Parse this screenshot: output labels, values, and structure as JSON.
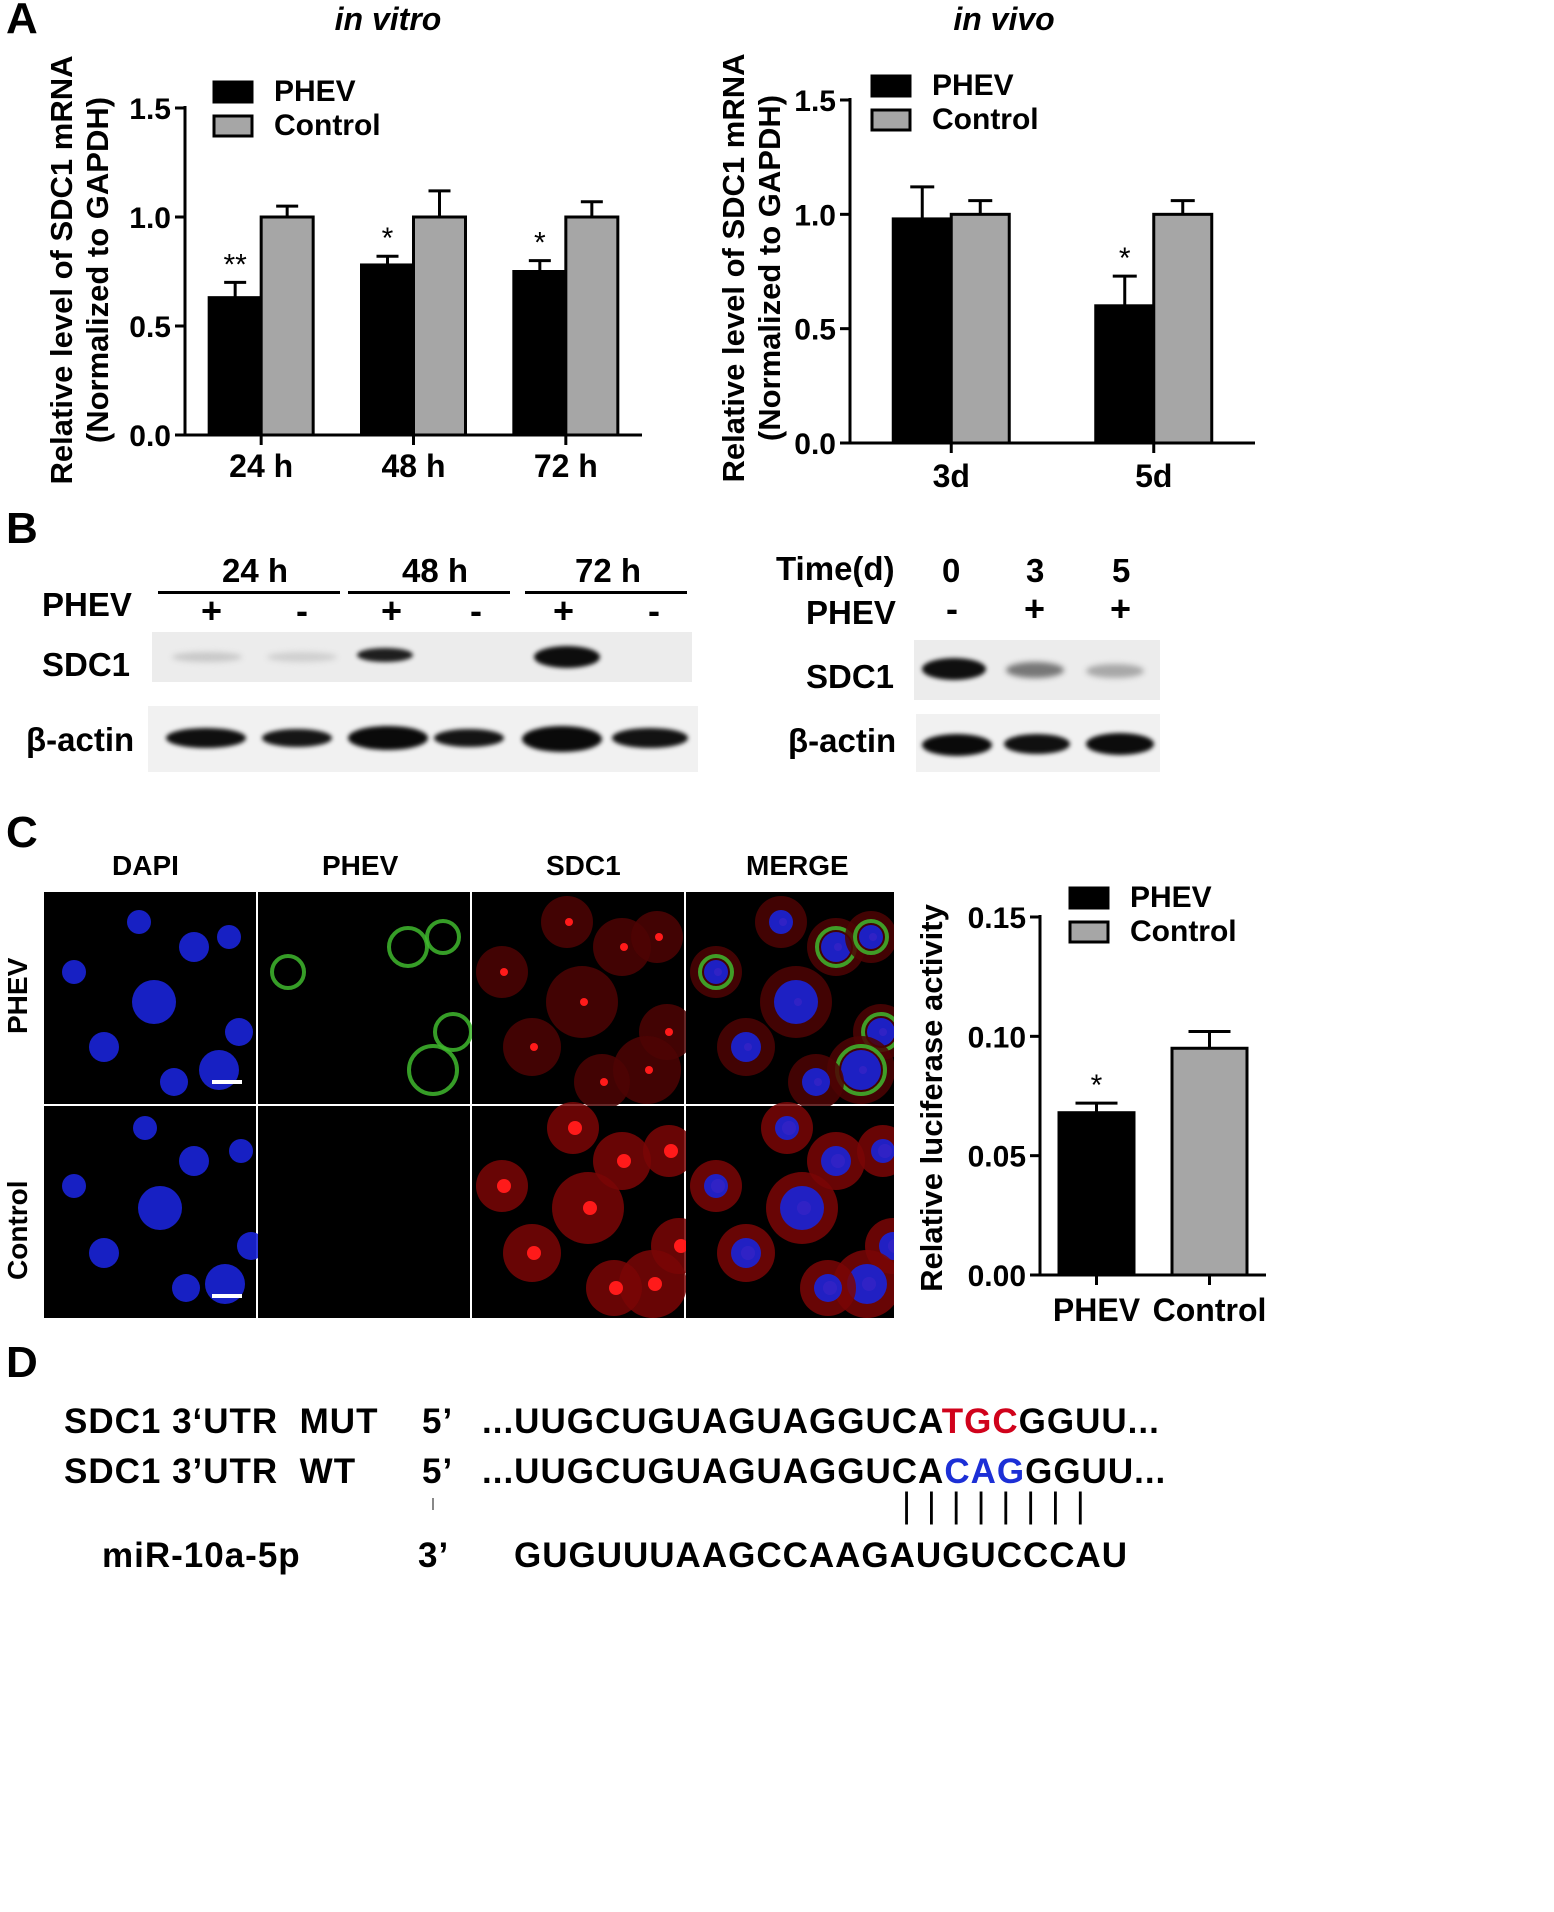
{
  "panels": {
    "A": "A",
    "B": "B",
    "C": "C",
    "D": "D"
  },
  "chart_data": [
    {
      "type": "bar",
      "title": "in vitro",
      "ylabel_line1": "Relative level of SDC1 mRNA",
      "ylabel_line2": "(Normalized to GAPDH)",
      "xlabel": "",
      "categories": [
        "24 h",
        "48 h",
        "72 h"
      ],
      "series": [
        {
          "name": "PHEV",
          "values": [
            0.63,
            0.78,
            0.75
          ],
          "errors": [
            0.07,
            0.04,
            0.05
          ],
          "color": "#000000"
        },
        {
          "name": "Control",
          "values": [
            1.0,
            1.0,
            1.0
          ],
          "errors": [
            0.05,
            0.12,
            0.07
          ],
          "color": "#a6a6a6"
        }
      ],
      "significance": [
        "**",
        "*",
        "*"
      ],
      "ylim": [
        0,
        1.5
      ],
      "yticks": [
        "0.0",
        "0.5",
        "1.0",
        "1.5"
      ],
      "legend": "top-left",
      "grid": false
    },
    {
      "type": "bar",
      "title": "in vivo",
      "ylabel_line1": "Relative level of SDC1 mRNA",
      "ylabel_line2": "(Normalized to GAPDH)",
      "xlabel": "",
      "categories": [
        "3d",
        "5d"
      ],
      "series": [
        {
          "name": "PHEV",
          "values": [
            0.98,
            0.6
          ],
          "errors": [
            0.14,
            0.13
          ],
          "color": "#000000"
        },
        {
          "name": "Control",
          "values": [
            1.0,
            1.0
          ],
          "errors": [
            0.06,
            0.06
          ],
          "color": "#a6a6a6"
        }
      ],
      "significance": [
        "",
        "*"
      ],
      "ylim": [
        0,
        1.5
      ],
      "yticks": [
        "0.0",
        "0.5",
        "1.0",
        "1.5"
      ],
      "legend": "top-left",
      "grid": false
    },
    {
      "type": "bar",
      "title": "",
      "ylabel": "Relative luciferase activity",
      "xlabel": "",
      "categories": [
        "PHEV",
        "Control"
      ],
      "series": [
        {
          "name": "",
          "values": [
            0.068,
            0.095
          ],
          "errors": [
            0.004,
            0.007
          ],
          "colors": [
            "#000000",
            "#a6a6a6"
          ]
        }
      ],
      "legend_entries": [
        "PHEV",
        "Control"
      ],
      "significance": [
        "*",
        ""
      ],
      "ylim": [
        0,
        0.15
      ],
      "yticks": [
        "0.00",
        "0.05",
        "0.10",
        "0.15"
      ],
      "legend": "top-right",
      "grid": false
    }
  ],
  "western_blot": {
    "left": {
      "times": [
        "24 h",
        "48 h",
        "72 h"
      ],
      "row_label": "PHEV",
      "signs": [
        "+",
        "-",
        "+",
        "-",
        "+",
        "-"
      ],
      "bands": [
        "SDC1",
        "β-actin"
      ]
    },
    "right": {
      "time_label": "Time(d)",
      "times": [
        "0",
        "3",
        "5"
      ],
      "row_label": "PHEV",
      "signs": [
        "-",
        "+",
        "+"
      ],
      "bands": [
        "SDC1",
        "β-actin"
      ]
    }
  },
  "microscopy": {
    "columns": [
      "DAPI",
      "PHEV",
      "SDC1",
      "MERGE"
    ],
    "rows": [
      "PHEV",
      "Control"
    ]
  },
  "sequence": {
    "rows": [
      {
        "label": "SDC1 3‘UTR  MUT",
        "prime": "5’",
        "pre": "...UUGCUGUAGUAGGUCA",
        "mid": "TGC",
        "post": "GGUU...",
        "mid_color": "#d0021b"
      },
      {
        "label": "SDC1 3’UTR  WT",
        "prime": "5’",
        "pre": "...UUGCUGUAGUAGGUCA",
        "mid": "CAG",
        "post": "GGUU...",
        "mid_color": "#1c2fd6"
      },
      {
        "label": "miR-10a-5p",
        "prime": "3’",
        "pre": "GUGUUUAAGCCAAGAUGUCCCAU",
        "mid": "",
        "post": "",
        "mid_color": ""
      }
    ],
    "pairing": "| | | | | | | |"
  }
}
